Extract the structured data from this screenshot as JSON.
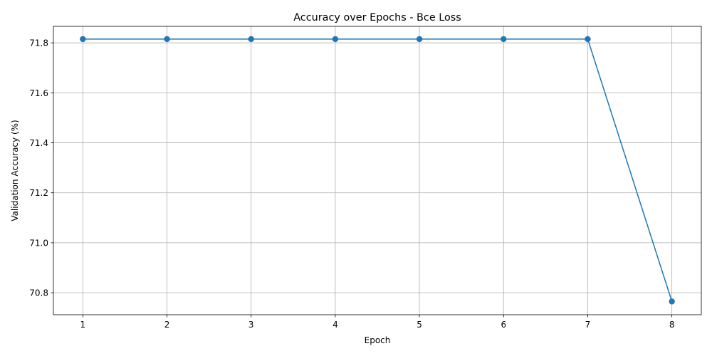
{
  "chart_data": {
    "type": "line",
    "title": "Accuracy over Epochs - Bce Loss",
    "xlabel": "Epoch",
    "ylabel": "Validation Accuracy (%)",
    "x": [
      1,
      2,
      3,
      4,
      5,
      6,
      7,
      8
    ],
    "xticks": [
      "1",
      "2",
      "3",
      "4",
      "5",
      "6",
      "7",
      "8"
    ],
    "xlim": [
      0.65,
      8.35
    ],
    "yticks": [
      "70.8",
      "71.0",
      "71.2",
      "71.4",
      "71.6",
      "71.8"
    ],
    "ytick_values": [
      70.8,
      71.0,
      71.2,
      71.4,
      71.6,
      71.8
    ],
    "ylim": [
      70.712,
      71.866
    ],
    "series": [
      {
        "values": [
          71.815,
          71.815,
          71.815,
          71.815,
          71.815,
          71.815,
          71.815,
          70.765
        ],
        "color": "#1f77b4",
        "marker": "circle"
      }
    ],
    "grid": true,
    "legend": "none"
  }
}
